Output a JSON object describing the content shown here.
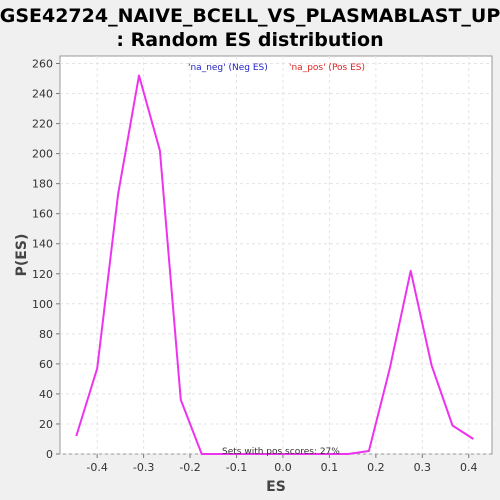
{
  "chart_data": {
    "type": "line",
    "title_line1": "GSE42724_NAIVE_BCELL_VS_PLASMABLAST_UP",
    "title_line2": ": Random ES distribution",
    "xlabel": "ES",
    "ylabel": "P(ES)",
    "xlim": [
      -0.48,
      0.45
    ],
    "ylim": [
      0,
      265
    ],
    "x_ticks": [
      -0.4,
      -0.3,
      -0.2,
      -0.1,
      0.0,
      0.1,
      0.2,
      0.3,
      0.4
    ],
    "x_tick_labels": [
      "-0.4",
      "-0.3",
      "-0.2",
      "-0.1",
      "0.0",
      "0.1",
      "0.2",
      "0.3",
      "0.4"
    ],
    "y_ticks": [
      0,
      20,
      40,
      60,
      80,
      100,
      120,
      140,
      160,
      180,
      200,
      220,
      240,
      260
    ],
    "y_tick_labels": [
      "0",
      "20",
      "40",
      "60",
      "80",
      "100",
      "120",
      "140",
      "160",
      "180",
      "200",
      "220",
      "240",
      "260"
    ],
    "grid": true,
    "legend": [
      {
        "label": "'na_neg' (Neg ES)",
        "color": "#2222cc"
      },
      {
        "label": "'na_pos' (Pos ES)",
        "color": "#dd2222"
      }
    ],
    "legend_position": "top",
    "annotation": "Sets with pos scores: 27%",
    "series": [
      {
        "color": "#ee33ee",
        "x": [
          -0.445,
          -0.4,
          -0.355,
          -0.31,
          -0.265,
          -0.22,
          -0.175,
          -0.13,
          -0.085,
          -0.04,
          0.005,
          0.05,
          0.095,
          0.14,
          0.185,
          0.23,
          0.275,
          0.32,
          0.365,
          0.41
        ],
        "y": [
          12,
          57,
          173,
          252,
          202,
          36,
          0,
          0,
          0,
          0,
          0,
          0,
          0,
          0,
          2,
          57,
          122,
          59,
          19,
          10
        ]
      }
    ]
  }
}
